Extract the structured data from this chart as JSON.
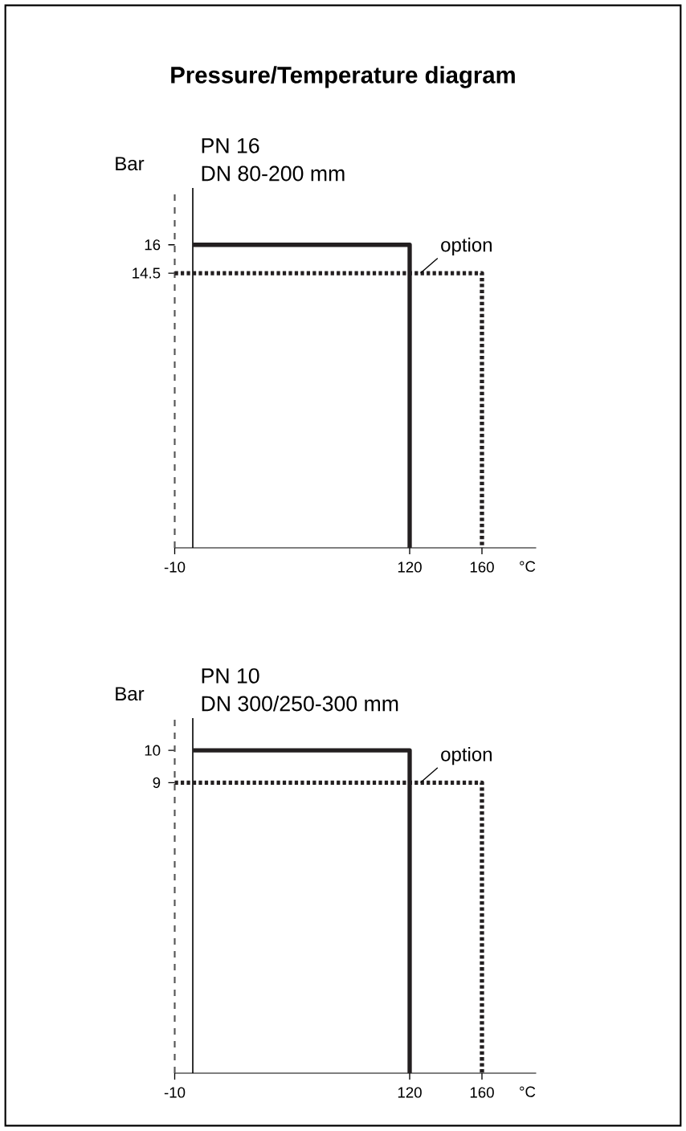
{
  "chart_data": [
    {
      "type": "line",
      "title": "Pressure/Temperature diagram",
      "subtitle": "PN 16",
      "annotations": [
        "DN 80-200 mm"
      ],
      "ylabel": "Bar",
      "xlabel": "°C",
      "xlim": [
        -10,
        190
      ],
      "ylim": [
        0,
        19
      ],
      "xticks": [
        -10,
        120,
        160
      ],
      "yticks": [
        14.5,
        16
      ],
      "series": [
        {
          "color": "#231f20",
          "line_style": "solid",
          "x": [
            0,
            120,
            120
          ],
          "values": [
            16,
            16,
            0
          ]
        },
        {
          "name": "option",
          "color": "#231f20",
          "line_style": "dotted",
          "x": [
            -10,
            160,
            160
          ],
          "values": [
            14.5,
            14.5,
            0
          ]
        }
      ],
      "ref_lines": [
        {
          "axis": "x",
          "value": -10,
          "color": "#555555",
          "line_style": "dashed"
        }
      ]
    },
    {
      "type": "line",
      "subtitle": "PN 10",
      "annotations": [
        "DN 300/250-300 mm"
      ],
      "ylabel": "Bar",
      "xlabel": "°C",
      "xlim": [
        -10,
        190
      ],
      "ylim": [
        0,
        11
      ],
      "xticks": [
        -10,
        120,
        160
      ],
      "yticks": [
        9,
        10
      ],
      "series": [
        {
          "color": "#231f20",
          "line_style": "solid",
          "x": [
            0,
            120,
            120
          ],
          "values": [
            10,
            10,
            0
          ]
        },
        {
          "name": "option",
          "color": "#231f20",
          "line_style": "dotted",
          "x": [
            -10,
            160,
            160
          ],
          "values": [
            9,
            9,
            0
          ]
        }
      ],
      "ref_lines": [
        {
          "axis": "x",
          "value": -10,
          "color": "#555555",
          "line_style": "dashed"
        }
      ]
    }
  ]
}
